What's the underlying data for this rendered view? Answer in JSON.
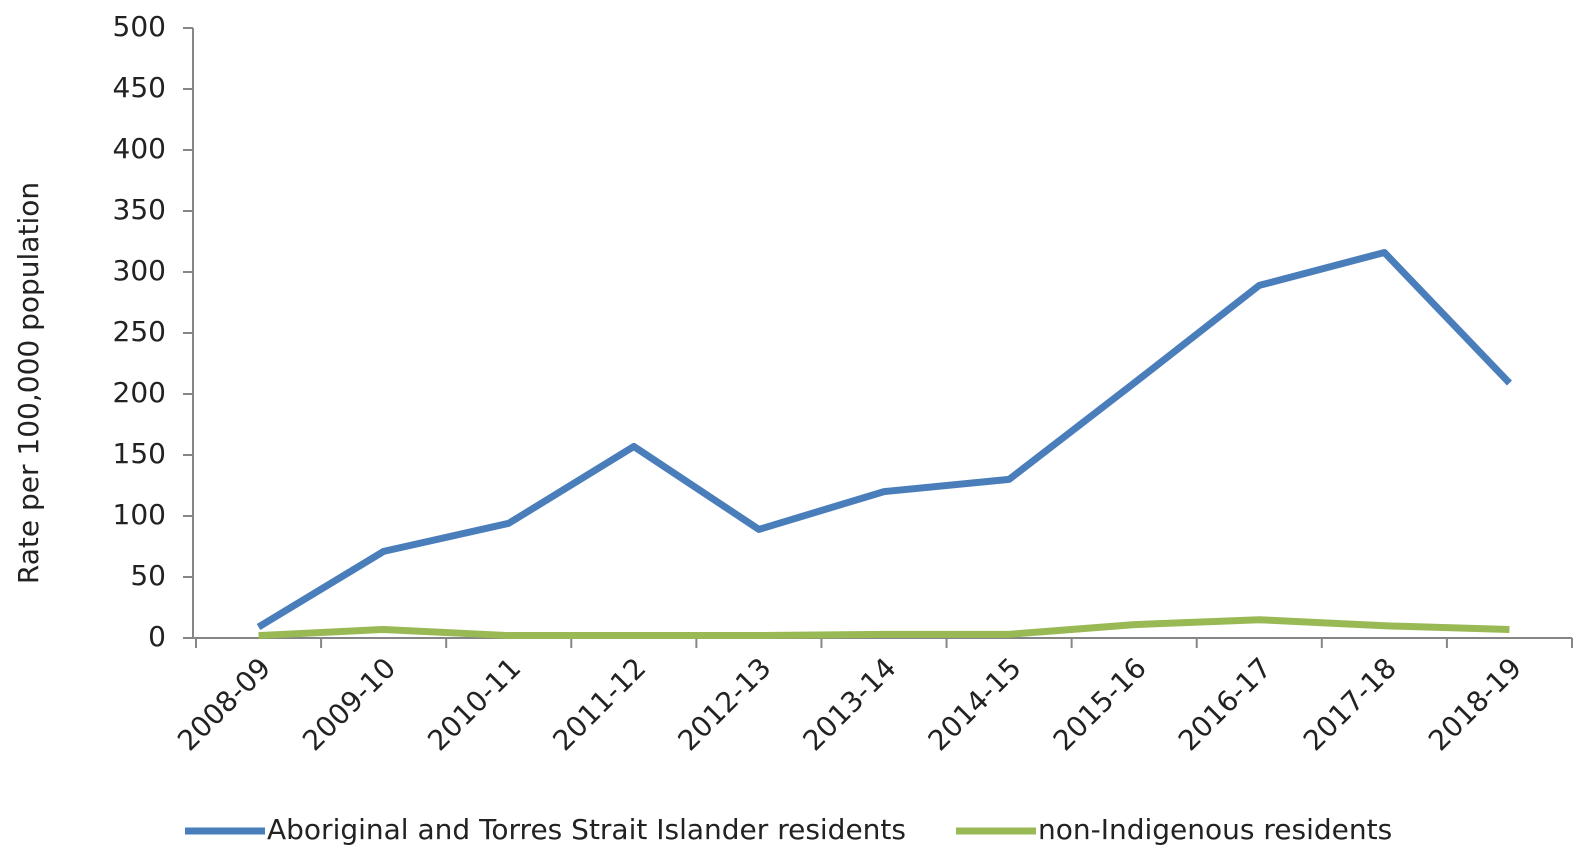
{
  "chart_data": {
    "type": "line",
    "y_label": "Rate per 100,000 population",
    "categories": [
      "2008-09",
      "2009-10",
      "2010-11",
      "2011-12",
      "2012-13",
      "2013-14",
      "2014-15",
      "2015-16",
      "2016-17",
      "2017-18",
      "2018-19"
    ],
    "series": [
      {
        "name": "Aboriginal and Torres Strait Islander residents",
        "color": "#4a7ebb",
        "values": [
          9,
          71,
          94,
          157,
          89,
          120,
          130,
          209,
          289,
          316,
          209
        ]
      },
      {
        "name": "non-Indigenous residents",
        "color": "#98b954",
        "values": [
          2,
          7,
          2,
          2,
          2,
          3,
          3,
          11,
          15,
          10,
          7
        ]
      }
    ],
    "ylim": [
      0,
      500
    ],
    "yticks": [
      0,
      50,
      100,
      150,
      200,
      250,
      300,
      350,
      400,
      450,
      500
    ],
    "grid": false,
    "legend": "bottom"
  }
}
